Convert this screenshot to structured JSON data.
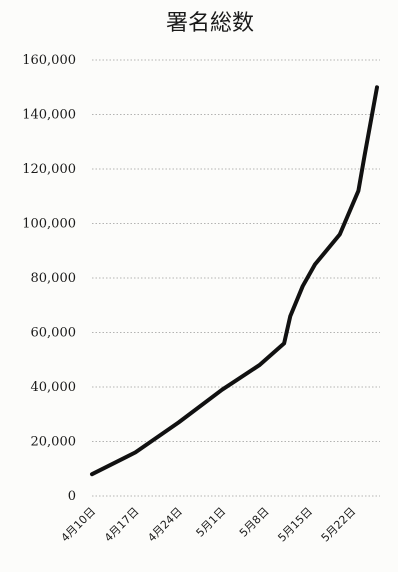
{
  "chart_data": {
    "type": "line",
    "title": "署名総数",
    "xlabel": "",
    "ylabel": "",
    "ylim": [
      0,
      160000
    ],
    "y_ticks": [
      "0",
      "20,000",
      "40,000",
      "60,000",
      "80,000",
      "100,000",
      "120,000",
      "140,000",
      "160,000"
    ],
    "x_tick_labels": [
      "4月10日",
      "4月17日",
      "4月24日",
      "5月1日",
      "5月8日",
      "5月15日",
      "5月22日"
    ],
    "x_range": [
      "4月10日",
      "5月26日"
    ],
    "grid": true,
    "legend": "none",
    "series": [
      {
        "color": "#111111",
        "points": [
          {
            "x": "4月10日",
            "y": 8000
          },
          {
            "x": "4月17日",
            "y": 16000
          },
          {
            "x": "4月24日",
            "y": 27000
          },
          {
            "x": "5月1日",
            "y": 39000
          },
          {
            "x": "5月7日",
            "y": 48000
          },
          {
            "x": "5月11日",
            "y": 56000
          },
          {
            "x": "5月12日",
            "y": 66000
          },
          {
            "x": "5月14日",
            "y": 77000
          },
          {
            "x": "5月16日",
            "y": 85000
          },
          {
            "x": "5月20日",
            "y": 96000
          },
          {
            "x": "5月23日",
            "y": 112000
          },
          {
            "x": "5月24日",
            "y": 125000
          },
          {
            "x": "5月26日",
            "y": 150000
          }
        ]
      }
    ]
  }
}
